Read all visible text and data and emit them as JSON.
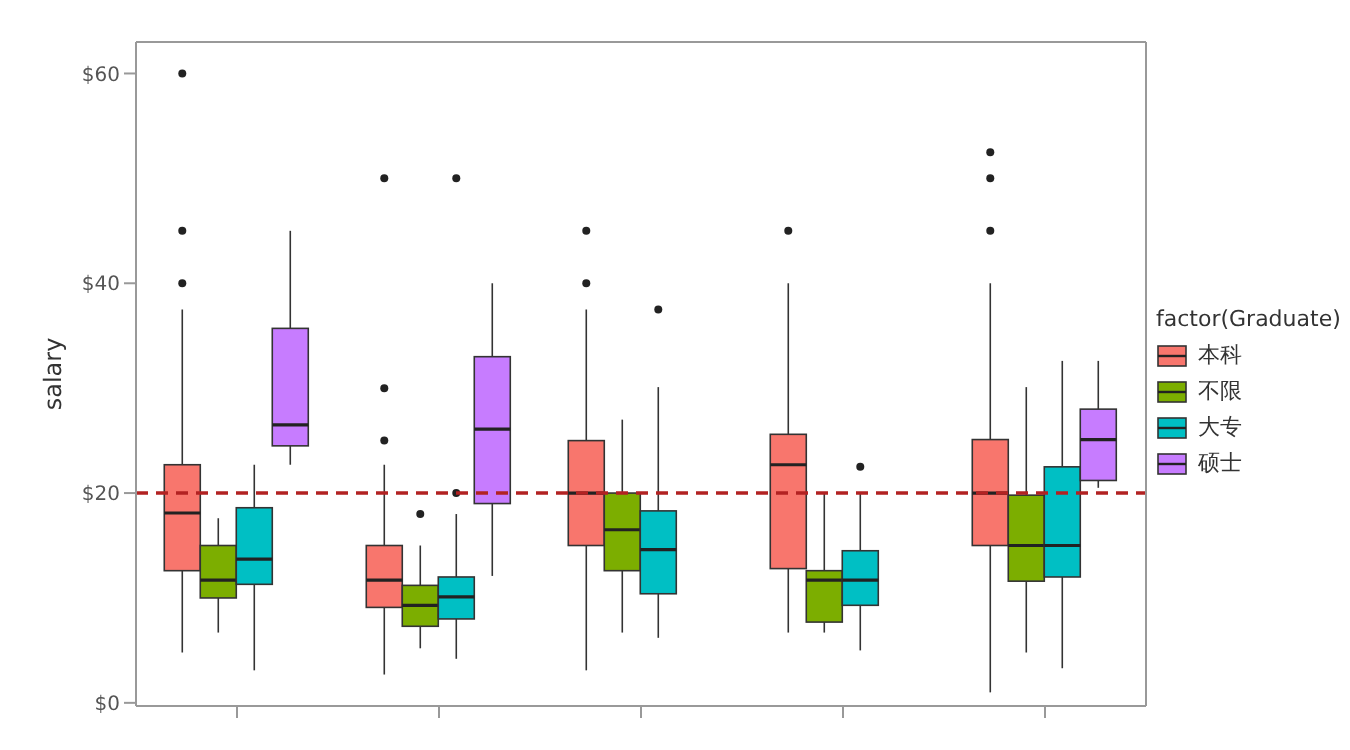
{
  "chart_data": {
    "type": "box",
    "categories": [
      null,
      null,
      null,
      null,
      null
    ],
    "ylabel": "salary",
    "legend_title": "factor(Graduate)",
    "legend": "right",
    "ylim": [
      -0.3,
      63
    ],
    "yticks": [
      {
        "value": 0,
        "label": "$0"
      },
      {
        "value": 20,
        "label": "$20"
      },
      {
        "value": 40,
        "label": "$40"
      },
      {
        "value": 60,
        "label": "$60"
      }
    ],
    "ref_lines": [
      {
        "axis": "y",
        "value": 20,
        "color": "#b22222",
        "line_style": "dashed"
      }
    ],
    "series": [
      {
        "name": "本科",
        "color": "#f8766d",
        "boxes": [
          {
            "low": 4.8,
            "q1": 12.6,
            "median": 18.1,
            "q3": 22.7,
            "high": 37.5,
            "outliers": [
              40,
              45,
              60
            ]
          },
          {
            "low": 2.7,
            "q1": 9.1,
            "median": 11.7,
            "q3": 15,
            "high": 22.7,
            "outliers": [
              25,
              30,
              50
            ]
          },
          {
            "low": 3.1,
            "q1": 15,
            "median": 20,
            "q3": 25,
            "high": 37.5,
            "outliers": [
              40,
              45
            ]
          },
          {
            "low": 6.7,
            "q1": 12.8,
            "median": 22.7,
            "q3": 25.6,
            "high": 40,
            "outliers": [
              45
            ]
          },
          {
            "low": 1,
            "q1": 15,
            "median": 20,
            "q3": 25.1,
            "high": 40,
            "outliers": [
              45,
              50,
              52.5
            ]
          }
        ]
      },
      {
        "name": "不限",
        "color": "#7cae00",
        "boxes": [
          {
            "low": 6.7,
            "q1": 10,
            "median": 11.7,
            "q3": 15,
            "high": 17.6
          },
          {
            "low": 5.2,
            "q1": 7.3,
            "median": 9.3,
            "q3": 11.2,
            "high": 15,
            "outliers": [
              18
            ]
          },
          {
            "low": 6.7,
            "q1": 12.6,
            "median": 16.5,
            "q3": 20,
            "high": 27
          },
          {
            "low": 6.7,
            "q1": 7.7,
            "median": 11.7,
            "q3": 12.6,
            "high": 20
          },
          {
            "low": 4.8,
            "q1": 11.6,
            "median": 15,
            "q3": 19.8,
            "high": 30.1
          }
        ]
      },
      {
        "name": "大专",
        "color": "#00bfc4",
        "boxes": [
          {
            "low": 3.1,
            "q1": 11.3,
            "median": 13.7,
            "q3": 18.6,
            "high": 22.7
          },
          {
            "low": 4.2,
            "q1": 8,
            "median": 10.1,
            "q3": 12,
            "high": 18,
            "outliers": [
              20,
              50
            ]
          },
          {
            "low": 6.2,
            "q1": 10.4,
            "median": 14.6,
            "q3": 18.3,
            "high": 30.1,
            "outliers": [
              37.5
            ]
          },
          {
            "low": 5,
            "q1": 9.3,
            "median": 11.7,
            "q3": 14.5,
            "high": 20,
            "outliers": [
              22.5
            ]
          },
          {
            "low": 3.3,
            "q1": 12,
            "median": 15,
            "q3": 22.5,
            "high": 32.6
          }
        ]
      },
      {
        "name": "硕士",
        "color": "#c77cff",
        "boxes": [
          {
            "low": 22.7,
            "q1": 24.5,
            "median": 26.5,
            "q3": 35.7,
            "high": 45
          },
          {
            "low": 12.1,
            "q1": 19,
            "median": 26.1,
            "q3": 33,
            "high": 40
          },
          null,
          null,
          {
            "low": 20.5,
            "q1": 21.2,
            "median": 25.1,
            "q3": 28,
            "high": 32.6
          }
        ]
      }
    ]
  }
}
